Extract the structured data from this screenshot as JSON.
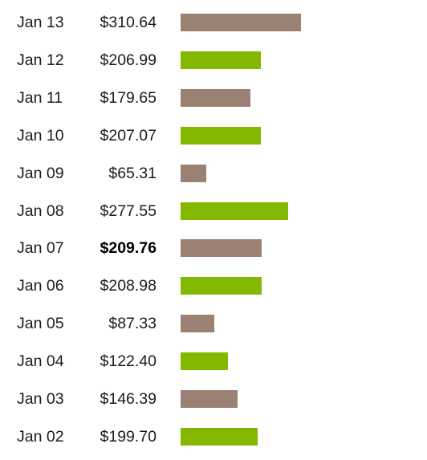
{
  "chart_data": {
    "type": "bar",
    "orientation": "horizontal",
    "categories": [
      "Jan 13",
      "Jan 12",
      "Jan 11",
      "Jan 10",
      "Jan 09",
      "Jan 08",
      "Jan 07",
      "Jan 06",
      "Jan 05",
      "Jan 04",
      "Jan 03",
      "Jan 02"
    ],
    "values": [
      310.64,
      206.99,
      179.65,
      207.07,
      65.31,
      277.55,
      209.76,
      208.98,
      87.33,
      122.4,
      146.39,
      199.7
    ],
    "value_labels": [
      "$310.64",
      "$206.99",
      "$179.65",
      "$207.07",
      "$65.31",
      "$277.55",
      "$209.76",
      "$208.98",
      "$87.33",
      "$122.40",
      "$146.39",
      "$199.70"
    ],
    "highlighted_category": "Jan 07",
    "bar_colors": [
      "#9a8174",
      "#84b800",
      "#9a8174",
      "#84b800",
      "#9a8174",
      "#84b800",
      "#9a8174",
      "#84b800",
      "#9a8174",
      "#84b800",
      "#9a8174",
      "#84b800"
    ],
    "xlim": [
      0,
      310.64
    ],
    "grid": false,
    "title": "",
    "xlabel": "",
    "ylabel": ""
  }
}
